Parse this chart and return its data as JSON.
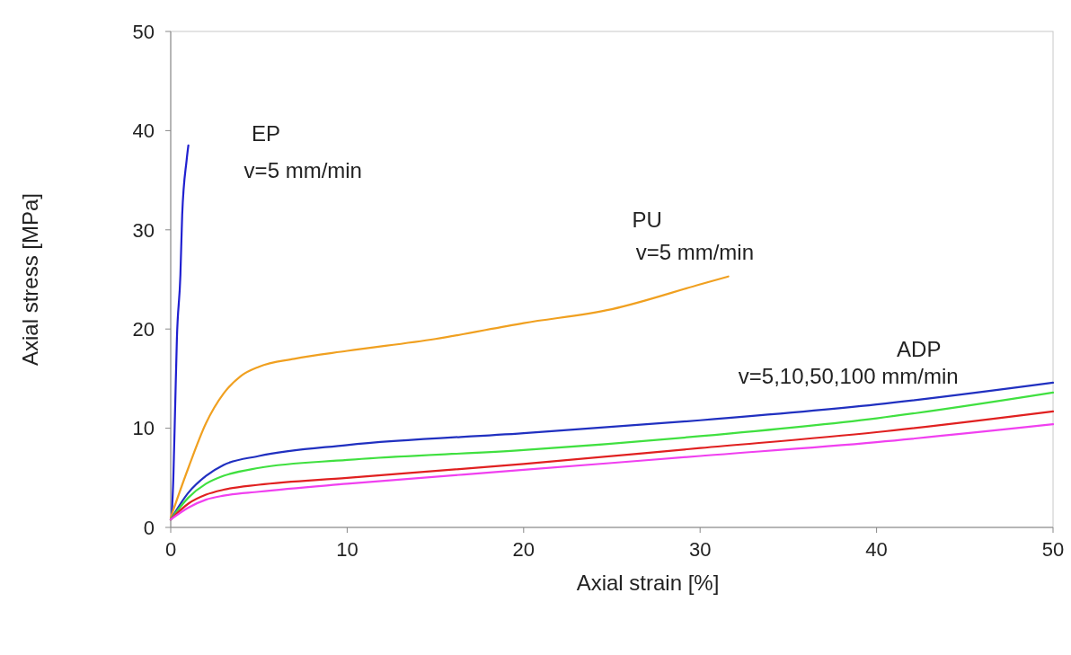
{
  "chart_data": {
    "type": "line",
    "xlabel": "Axial strain [%]",
    "ylabel": "Axial stress [MPa]",
    "xlim": [
      0,
      50
    ],
    "ylim": [
      0,
      50
    ],
    "xticks": [
      0,
      10,
      20,
      30,
      40,
      50
    ],
    "yticks": [
      0,
      10,
      20,
      30,
      40,
      50
    ],
    "grid": false,
    "marker": "none",
    "line_style": "solid",
    "series": [
      {
        "color": "#2020d0",
        "x": [
          0.05,
          0.15,
          0.25,
          0.35,
          0.55,
          0.65,
          0.9,
          1.0
        ],
        "values": [
          1,
          5,
          12,
          19,
          25.5,
          31.5,
          37,
          38.5
        ]
      },
      {
        "color": "#f0a020",
        "x": [
          0,
          1,
          2,
          3,
          4,
          5,
          7,
          10,
          15,
          20,
          25,
          30,
          31.6
        ],
        "values": [
          1,
          6,
          10.5,
          13.5,
          15.3,
          16.2,
          17,
          17.8,
          19,
          20.6,
          22,
          24.5,
          25.3
        ]
      },
      {
        "color": "#2030c0",
        "x": [
          0,
          1,
          2,
          3,
          5,
          10,
          20,
          30,
          40,
          50
        ],
        "values": [
          0.8,
          3.5,
          5.2,
          6.3,
          7.2,
          8.3,
          9.5,
          10.8,
          12.4,
          14.6
        ]
      },
      {
        "color": "#40e040",
        "x": [
          0,
          1,
          2,
          3,
          5,
          10,
          20,
          30,
          40,
          50
        ],
        "values": [
          0.8,
          3,
          4.4,
          5.2,
          6,
          6.8,
          7.8,
          9.2,
          11,
          13.6
        ]
      },
      {
        "color": "#e02020",
        "x": [
          0,
          1,
          2,
          3,
          5,
          10,
          20,
          30,
          40,
          50
        ],
        "values": [
          0.8,
          2.4,
          3.3,
          3.8,
          4.3,
          5,
          6.4,
          8,
          9.6,
          11.7
        ]
      },
      {
        "color": "#f040f0",
        "x": [
          0,
          1,
          2,
          3,
          5,
          10,
          20,
          30,
          40,
          50
        ],
        "values": [
          0.8,
          2,
          2.8,
          3.2,
          3.6,
          4.4,
          5.8,
          7.2,
          8.6,
          10.4
        ]
      }
    ],
    "annotations": [
      "EP",
      "v=5 mm/min",
      "PU",
      "v=5 mm/min",
      "ADP",
      "v=5,10,50,100 mm/min"
    ]
  }
}
